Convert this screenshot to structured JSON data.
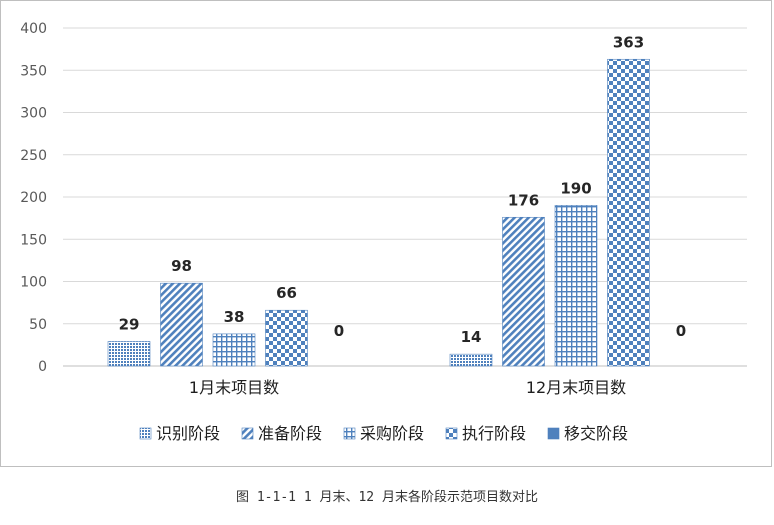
{
  "chart_data": {
    "type": "bar",
    "categories": [
      "1月末项目数",
      "12月末项目数"
    ],
    "series": [
      {
        "name": "识别阶段",
        "values": [
          29,
          14
        ],
        "pattern": "dots"
      },
      {
        "name": "准备阶段",
        "values": [
          98,
          176
        ],
        "pattern": "diagonal"
      },
      {
        "name": "采购阶段",
        "values": [
          38,
          190
        ],
        "pattern": "grid"
      },
      {
        "name": "执行阶段",
        "values": [
          66,
          363
        ],
        "pattern": "checker"
      },
      {
        "name": "移交阶段",
        "values": [
          0,
          0
        ],
        "pattern": "solid"
      }
    ],
    "yticks": [
      0,
      50,
      100,
      150,
      200,
      250,
      300,
      350,
      400
    ],
    "ylim": [
      0,
      400
    ],
    "grid": true,
    "legend": "bottom",
    "color": "#4f81bd"
  },
  "caption": "图 1-1-1  1 月末、12 月末各阶段示范项目数对比"
}
